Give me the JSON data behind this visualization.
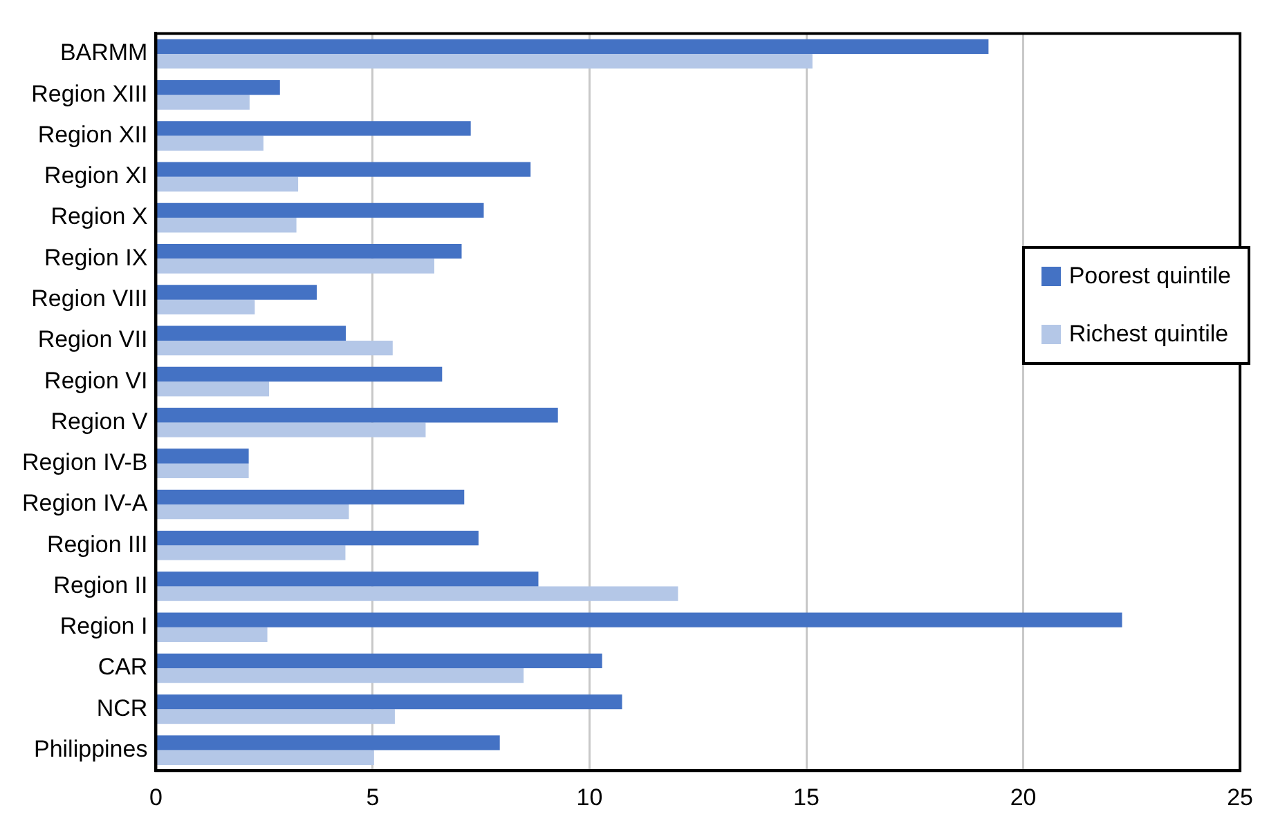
{
  "chart_data": {
    "type": "bar",
    "orientation": "horizontal",
    "categories": [
      "BARMM",
      "Region XIII",
      "Region XII",
      "Region XI",
      "Region X",
      "Region IX",
      "Region VIII",
      "Region VII",
      "Region VI",
      "Region V",
      "Region IV-B",
      "Region IV-A",
      "Region III",
      "Region II",
      "Region I",
      "CAR",
      "NCR",
      "Philippines"
    ],
    "series": [
      {
        "name": "Poorest quintile",
        "color": "#4472c4",
        "values": [
          19.2,
          2.86,
          7.26,
          8.64,
          7.56,
          7.05,
          3.71,
          4.38,
          6.6,
          9.27,
          2.14,
          7.11,
          7.44,
          8.82,
          22.28,
          10.29,
          10.75,
          7.93
        ]
      },
      {
        "name": "Richest quintile",
        "color": "#b4c7e7",
        "values": [
          15.14,
          2.16,
          2.48,
          3.28,
          3.24,
          6.42,
          2.28,
          5.46,
          2.61,
          6.22,
          2.14,
          4.45,
          4.37,
          12.04,
          2.57,
          8.48,
          5.51,
          5.03
        ]
      }
    ],
    "xlim": [
      0,
      25
    ],
    "xticks": [
      0,
      5,
      10,
      15,
      20,
      25
    ],
    "grid": "x",
    "legend": "right"
  }
}
